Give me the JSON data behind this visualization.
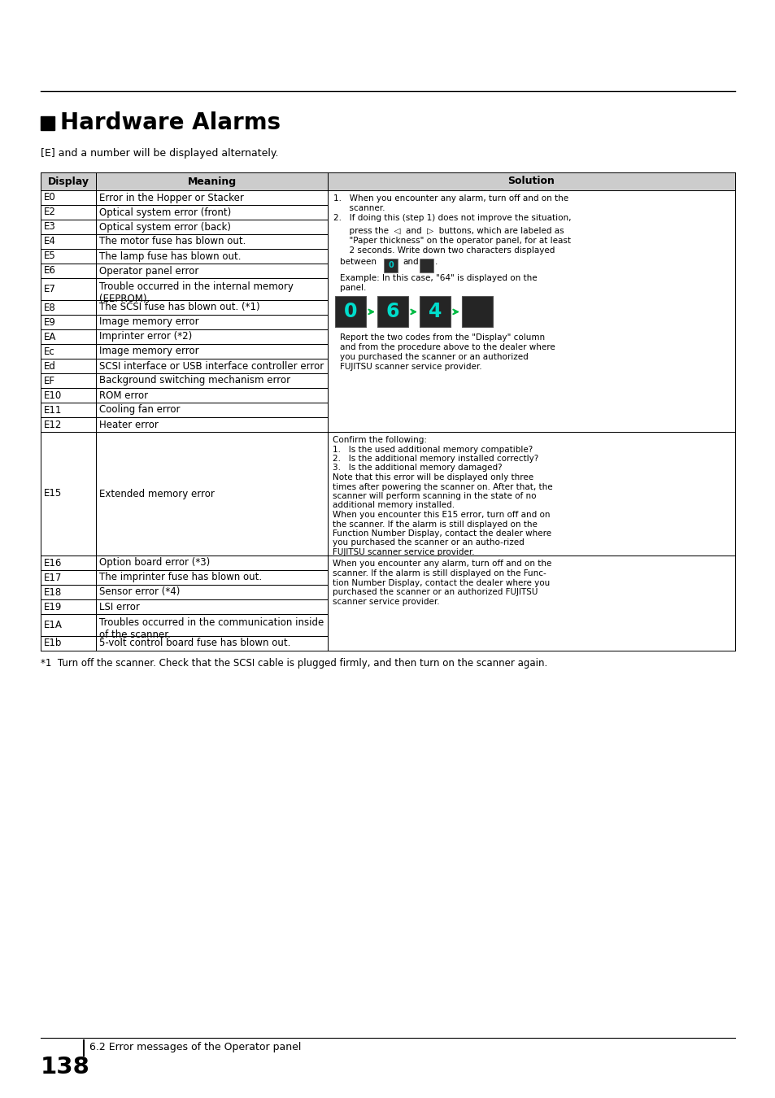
{
  "title": "Hardware Alarms",
  "subtitle": "[E] and a number will be displayed alternately.",
  "col_headers": [
    "Display",
    "Meaning",
    "Solution"
  ],
  "rows": [
    [
      "E0",
      "Error in the Hopper or Stacker",
      ""
    ],
    [
      "E2",
      "Optical system error (front)",
      ""
    ],
    [
      "E3",
      "Optical system error (back)",
      ""
    ],
    [
      "E4",
      "The motor fuse has blown out.",
      ""
    ],
    [
      "E5",
      "The lamp fuse has blown out.",
      ""
    ],
    [
      "E6",
      "Operator panel error",
      ""
    ],
    [
      "E7",
      "Trouble occurred in the internal memory\n(EEPROM).",
      ""
    ],
    [
      "E8",
      "The SCSI fuse has blown out. (*1)",
      ""
    ],
    [
      "E9",
      "Image memory error",
      ""
    ],
    [
      "EA",
      "Imprinter error (*2)",
      ""
    ],
    [
      "Ec",
      "Image memory error",
      ""
    ],
    [
      "Ed",
      "SCSI interface or USB interface controller error",
      ""
    ],
    [
      "EF",
      "Background switching mechanism error",
      ""
    ],
    [
      "E10",
      "ROM error",
      ""
    ],
    [
      "E11",
      "Cooling fan error",
      ""
    ],
    [
      "E12",
      "Heater error",
      ""
    ],
    [
      "E15",
      "Extended memory error",
      "e15"
    ],
    [
      "E16",
      "Option board error (*3)",
      "e16"
    ],
    [
      "E17",
      "The imprinter fuse has blown out.",
      ""
    ],
    [
      "E18",
      "Sensor error (*4)",
      ""
    ],
    [
      "E19",
      "LSI error",
      ""
    ],
    [
      "E1A",
      "Troubles occurred in the communication inside\nof the scanner.",
      ""
    ],
    [
      "E1b",
      "5-volt control board fuse has blown out.",
      ""
    ]
  ],
  "e15_solution_lines": [
    "Confirm the following:",
    "1.   Is the used additional memory compatible?",
    "2.   Is the additional memory installed correctly?",
    "3.   Is the additional memory damaged?",
    "Note that this error will be displayed only three",
    "times after powering the scanner on. After that, the",
    "scanner will perform scanning in the state of no",
    "additional memory installed.",
    "When you encounter this E15 error, turn off and on",
    "the scanner. If the alarm is still displayed on the",
    "Function Number Display, contact the dealer where",
    "you purchased the scanner or an autho-rized",
    "FUJITSU scanner service provider."
  ],
  "e16_solution_lines": [
    "When you encounter any alarm, turn off and on the",
    "scanner. If the alarm is still displayed on the Func-",
    "tion Number Display, contact the dealer where you",
    "purchased the scanner or an authorized FUJITSU",
    "scanner service provider."
  ],
  "sol1_lines": [
    "1.   When you encounter any alarm, turn off and on the",
    "      scanner.",
    "2.   If doing this (step 1) does not improve the situation,",
    "",
    "      press the  <  and  >  buttons, which are labeled as",
    "      \"Paper thickness\" on the operator panel, for at least",
    "      2 seconds. Write down two characters displayed"
  ],
  "sol1_after_boxes": [
    "Example: In this case, \"64\" is displayed on the",
    "panel."
  ],
  "sol1_after_panels": [
    "Report the two codes from the \"Display\" column",
    "and from the procedure above to the dealer where",
    "you purchased the scanner or an authorized",
    "FUJITSU scanner service provider."
  ],
  "footnote": "*1  Turn off the scanner. Check that the SCSI cable is plugged firmly, and then turn on the scanner again.",
  "footer_page": "138",
  "footer_text": "6.2 Error messages of the Operator panel",
  "bg_color": "#ffffff",
  "header_bg": "#cccccc",
  "text_color": "#000000"
}
